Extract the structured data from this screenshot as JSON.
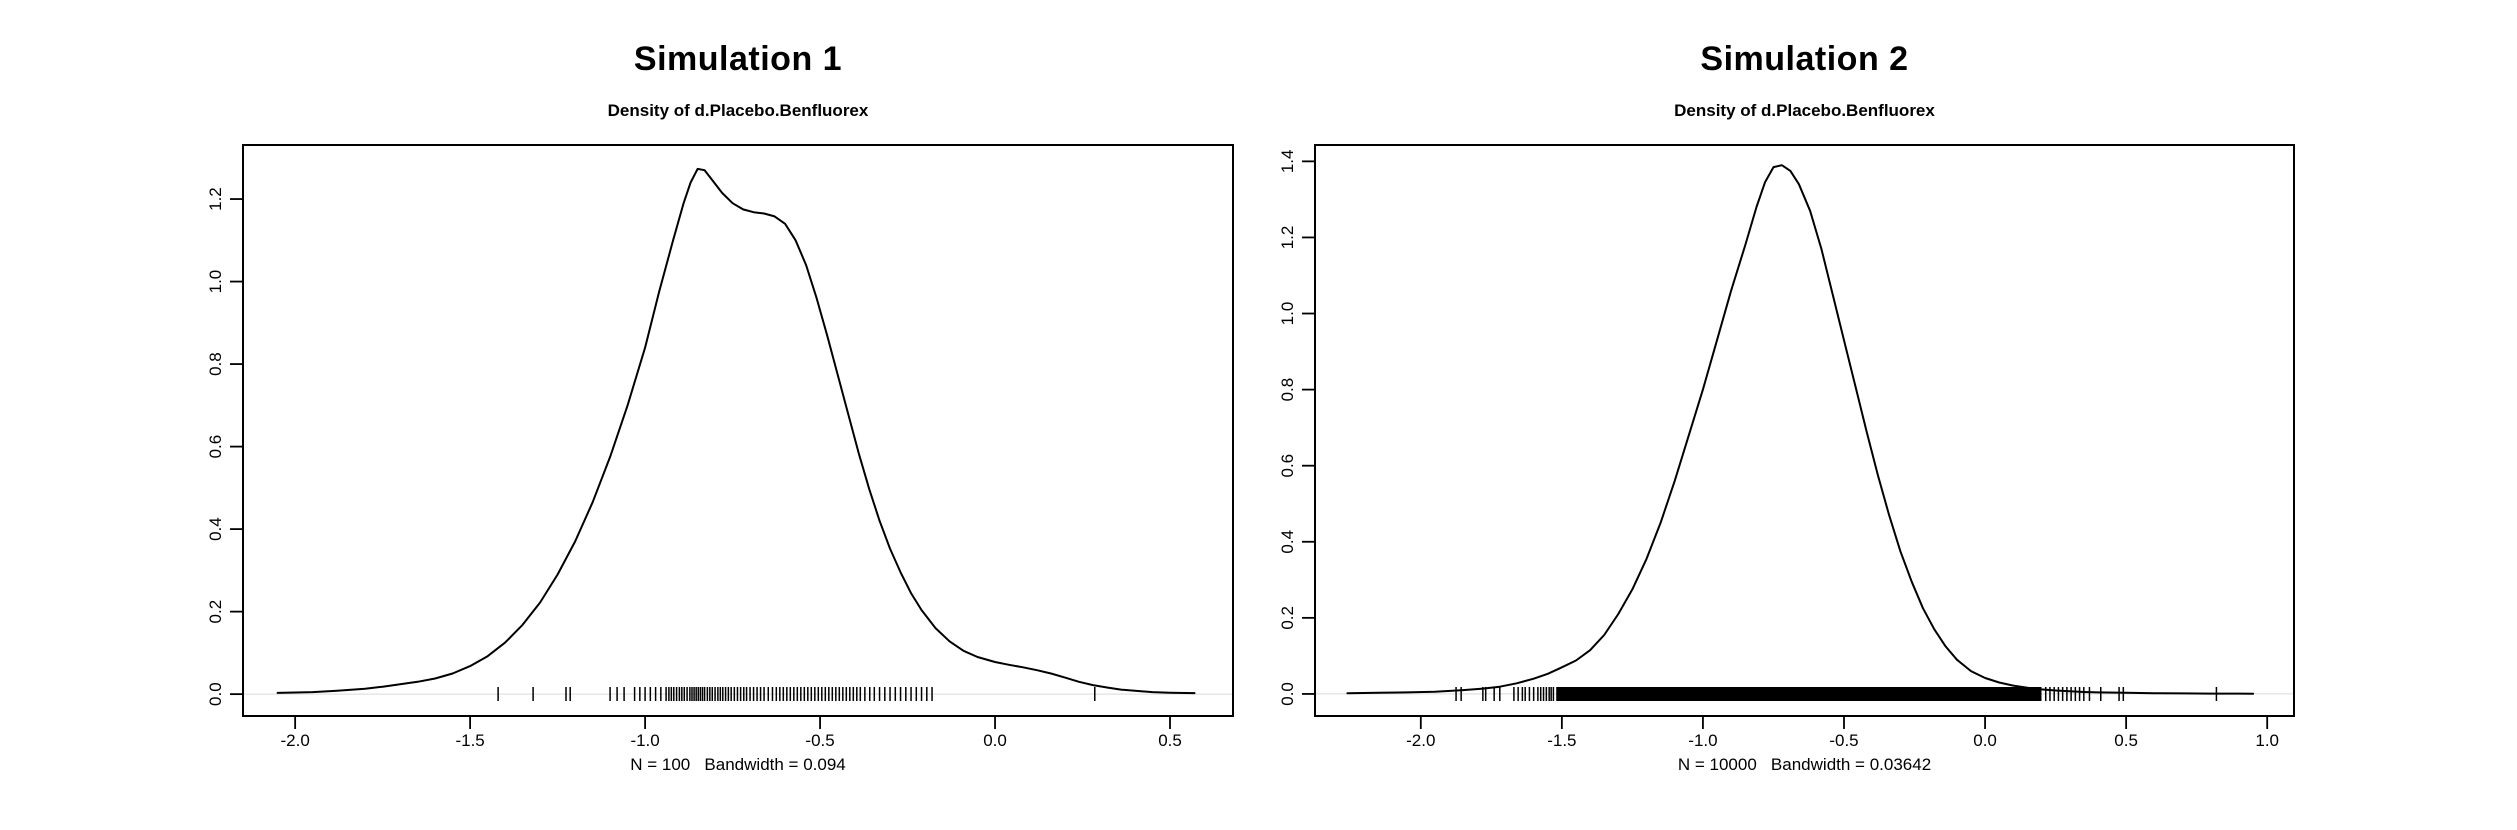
{
  "figure": {
    "background": "#ffffff",
    "text_color": "#000000",
    "curve_color": "#000000",
    "baseline_color": "#d9d9d9"
  },
  "chart_data": [
    {
      "type": "line",
      "panel": "left",
      "title": "Simulation 1",
      "subtitle": "Density of d.Placebo.Benfluorex",
      "xlabel": "N = 100   Bandwidth = 0.094",
      "n": 100,
      "bandwidth": 0.094,
      "xlim": [
        -2.149,
        0.68
      ],
      "ylim": [
        -0.053,
        1.331
      ],
      "x_ticks": [
        -2.0,
        -1.5,
        -1.0,
        -0.5,
        0.0,
        0.5
      ],
      "x_tick_labels": [
        "-2.0",
        "-1.5",
        "-1.0",
        "-0.5",
        "0.0",
        "0.5"
      ],
      "y_ticks": [
        0.0,
        0.2,
        0.4,
        0.6,
        0.8,
        1.0,
        1.2
      ],
      "y_tick_labels": [
        "0.0",
        "0.2",
        "0.4",
        "0.6",
        "0.8",
        "1.0",
        "1.2"
      ],
      "grid": false,
      "curve": [
        [
          -2.05,
          0.003
        ],
        [
          -1.95,
          0.005
        ],
        [
          -1.88,
          0.008
        ],
        [
          -1.8,
          0.013
        ],
        [
          -1.75,
          0.018
        ],
        [
          -1.7,
          0.024
        ],
        [
          -1.65,
          0.03
        ],
        [
          -1.6,
          0.038
        ],
        [
          -1.55,
          0.05
        ],
        [
          -1.5,
          0.068
        ],
        [
          -1.45,
          0.092
        ],
        [
          -1.4,
          0.125
        ],
        [
          -1.35,
          0.168
        ],
        [
          -1.3,
          0.222
        ],
        [
          -1.25,
          0.29
        ],
        [
          -1.2,
          0.37
        ],
        [
          -1.15,
          0.465
        ],
        [
          -1.1,
          0.575
        ],
        [
          -1.05,
          0.7
        ],
        [
          -1.0,
          0.84
        ],
        [
          -0.96,
          0.975
        ],
        [
          -0.92,
          1.1
        ],
        [
          -0.89,
          1.19
        ],
        [
          -0.87,
          1.24
        ],
        [
          -0.85,
          1.273
        ],
        [
          -0.83,
          1.27
        ],
        [
          -0.81,
          1.248
        ],
        [
          -0.78,
          1.215
        ],
        [
          -0.75,
          1.19
        ],
        [
          -0.72,
          1.175
        ],
        [
          -0.69,
          1.168
        ],
        [
          -0.66,
          1.165
        ],
        [
          -0.63,
          1.158
        ],
        [
          -0.6,
          1.14
        ],
        [
          -0.57,
          1.1
        ],
        [
          -0.54,
          1.04
        ],
        [
          -0.51,
          0.96
        ],
        [
          -0.48,
          0.87
        ],
        [
          -0.45,
          0.775
        ],
        [
          -0.42,
          0.68
        ],
        [
          -0.39,
          0.585
        ],
        [
          -0.36,
          0.498
        ],
        [
          -0.33,
          0.42
        ],
        [
          -0.3,
          0.352
        ],
        [
          -0.27,
          0.295
        ],
        [
          -0.24,
          0.245
        ],
        [
          -0.21,
          0.204
        ],
        [
          -0.17,
          0.16
        ],
        [
          -0.13,
          0.128
        ],
        [
          -0.09,
          0.105
        ],
        [
          -0.05,
          0.09
        ],
        [
          0.0,
          0.078
        ],
        [
          0.04,
          0.071
        ],
        [
          0.08,
          0.065
        ],
        [
          0.12,
          0.058
        ],
        [
          0.16,
          0.05
        ],
        [
          0.2,
          0.04
        ],
        [
          0.24,
          0.03
        ],
        [
          0.28,
          0.022
        ],
        [
          0.32,
          0.016
        ],
        [
          0.36,
          0.011
        ],
        [
          0.4,
          0.008
        ],
        [
          0.45,
          0.005
        ],
        [
          0.5,
          0.0035
        ],
        [
          0.57,
          0.0025
        ]
      ],
      "rug": [
        -1.42,
        -1.32,
        -1.226,
        -1.214,
        -1.1,
        -1.08,
        -1.06,
        -1.03,
        -1.015,
        -1.0,
        -0.985,
        -0.97,
        -0.955,
        -0.94,
        -0.932,
        -0.925,
        -0.918,
        -0.91,
        -0.902,
        -0.895,
        -0.888,
        -0.88,
        -0.872,
        -0.866,
        -0.86,
        -0.854,
        -0.848,
        -0.842,
        -0.836,
        -0.83,
        -0.822,
        -0.815,
        -0.808,
        -0.8,
        -0.792,
        -0.785,
        -0.778,
        -0.77,
        -0.762,
        -0.754,
        -0.745,
        -0.736,
        -0.727,
        -0.718,
        -0.71,
        -0.7,
        -0.69,
        -0.68,
        -0.67,
        -0.66,
        -0.648,
        -0.636,
        -0.625,
        -0.615,
        -0.605,
        -0.595,
        -0.585,
        -0.575,
        -0.565,
        -0.555,
        -0.545,
        -0.535,
        -0.525,
        -0.515,
        -0.505,
        -0.495,
        -0.485,
        -0.475,
        -0.465,
        -0.455,
        -0.445,
        -0.435,
        -0.425,
        -0.415,
        -0.405,
        -0.395,
        -0.385,
        -0.372,
        -0.358,
        -0.345,
        -0.33,
        -0.315,
        -0.3,
        -0.285,
        -0.27,
        -0.255,
        -0.24,
        -0.225,
        -0.21,
        -0.195,
        -0.18,
        0.285
      ],
      "rug_band": null
    },
    {
      "type": "line",
      "panel": "right",
      "title": "Simulation 2",
      "subtitle": "Density of d.Placebo.Benfluorex",
      "xlabel": "N = 10000   Bandwidth = 0.03642",
      "n": 10000,
      "bandwidth": 0.03642,
      "xlim": [
        -2.375,
        1.095
      ],
      "ylim": [
        -0.058,
        1.443
      ],
      "x_ticks": [
        -2.0,
        -1.5,
        -1.0,
        -0.5,
        0.0,
        0.5,
        1.0
      ],
      "x_tick_labels": [
        "-2.0",
        "-1.5",
        "-1.0",
        "-0.5",
        "0.0",
        "0.5",
        "1.0"
      ],
      "y_ticks": [
        0.0,
        0.2,
        0.4,
        0.6,
        0.8,
        1.0,
        1.2,
        1.4
      ],
      "y_tick_labels": [
        "0.0",
        "0.2",
        "0.4",
        "0.6",
        "0.8",
        "1.0",
        "1.2",
        "1.4"
      ],
      "grid": false,
      "curve": [
        [
          -2.26,
          0.002
        ],
        [
          -2.15,
          0.003
        ],
        [
          -2.05,
          0.004
        ],
        [
          -1.95,
          0.006
        ],
        [
          -1.85,
          0.01
        ],
        [
          -1.78,
          0.014
        ],
        [
          -1.72,
          0.019
        ],
        [
          -1.66,
          0.028
        ],
        [
          -1.6,
          0.04
        ],
        [
          -1.55,
          0.053
        ],
        [
          -1.5,
          0.07
        ],
        [
          -1.45,
          0.088
        ],
        [
          -1.4,
          0.115
        ],
        [
          -1.35,
          0.155
        ],
        [
          -1.3,
          0.21
        ],
        [
          -1.25,
          0.275
        ],
        [
          -1.2,
          0.355
        ],
        [
          -1.15,
          0.45
        ],
        [
          -1.1,
          0.56
        ],
        [
          -1.05,
          0.68
        ],
        [
          -1.0,
          0.8
        ],
        [
          -0.95,
          0.93
        ],
        [
          -0.9,
          1.06
        ],
        [
          -0.85,
          1.18
        ],
        [
          -0.81,
          1.28
        ],
        [
          -0.78,
          1.345
        ],
        [
          -0.75,
          1.385
        ],
        [
          -0.72,
          1.39
        ],
        [
          -0.69,
          1.375
        ],
        [
          -0.66,
          1.34
        ],
        [
          -0.62,
          1.27
        ],
        [
          -0.58,
          1.17
        ],
        [
          -0.54,
          1.05
        ],
        [
          -0.5,
          0.93
        ],
        [
          -0.46,
          0.81
        ],
        [
          -0.42,
          0.69
        ],
        [
          -0.38,
          0.575
        ],
        [
          -0.34,
          0.47
        ],
        [
          -0.3,
          0.375
        ],
        [
          -0.26,
          0.295
        ],
        [
          -0.22,
          0.225
        ],
        [
          -0.18,
          0.17
        ],
        [
          -0.14,
          0.125
        ],
        [
          -0.1,
          0.09
        ],
        [
          -0.05,
          0.06
        ],
        [
          0.0,
          0.042
        ],
        [
          0.05,
          0.03
        ],
        [
          0.1,
          0.022
        ],
        [
          0.15,
          0.016
        ],
        [
          0.2,
          0.012
        ],
        [
          0.25,
          0.009
        ],
        [
          0.3,
          0.007
        ],
        [
          0.35,
          0.005
        ],
        [
          0.4,
          0.004
        ],
        [
          0.5,
          0.003
        ],
        [
          0.6,
          0.002
        ],
        [
          0.7,
          0.0015
        ],
        [
          0.8,
          0.001
        ],
        [
          0.9,
          0.0008
        ],
        [
          0.95,
          0.0007
        ]
      ],
      "rug": [
        -1.875,
        -1.857,
        -1.78,
        -1.77,
        -1.74,
        -1.72,
        -1.67,
        -1.655,
        -1.64,
        -1.63,
        -1.615,
        -1.6,
        -1.585,
        -1.575,
        -1.565,
        -1.555,
        -1.545,
        -1.538,
        -1.53,
        0.215,
        0.23,
        0.245,
        0.26,
        0.275,
        0.29,
        0.305,
        0.32,
        0.335,
        0.35,
        0.37,
        0.41,
        0.475,
        0.49,
        0.82
      ],
      "rug_band": [
        -1.52,
        0.2
      ]
    }
  ]
}
